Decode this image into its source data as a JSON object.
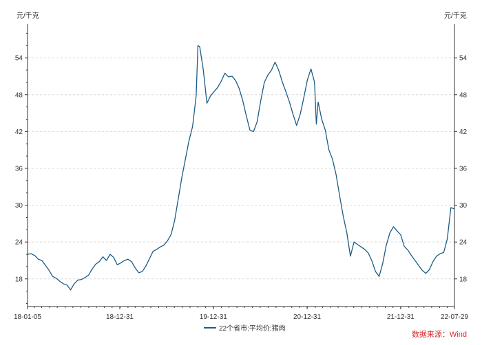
{
  "chart_data": {
    "type": "line",
    "unit_left": "元/千克",
    "unit_right": "元/千克",
    "ylim": [
      13.5,
      59.5
    ],
    "yticks": [
      18,
      24,
      30,
      36,
      42,
      48,
      54
    ],
    "xlim": [
      "2018-01-05",
      "2022-07-29"
    ],
    "xticks": [
      {
        "label": "18-01-05",
        "date": "2018-01-05"
      },
      {
        "label": "18-12-31",
        "date": "2018-12-31"
      },
      {
        "label": "19-12-31",
        "date": "2019-12-31"
      },
      {
        "label": "20-12-31",
        "date": "2020-12-31"
      },
      {
        "label": "21-12-31",
        "date": "2021-12-31"
      },
      {
        "label": "22-07-29",
        "date": "2022-07-29"
      }
    ],
    "grid": true,
    "legend_position": "bottom",
    "series": [
      {
        "name": "22个省市:平均价:猪肉",
        "color": "#1a5c85",
        "points": [
          [
            "2018-01-05",
            22.0
          ],
          [
            "2018-01-19",
            22.1
          ],
          [
            "2018-02-02",
            21.8
          ],
          [
            "2018-02-16",
            21.2
          ],
          [
            "2018-03-02",
            21.0
          ],
          [
            "2018-03-16",
            20.2
          ],
          [
            "2018-03-30",
            19.4
          ],
          [
            "2018-04-13",
            18.4
          ],
          [
            "2018-04-27",
            18.1
          ],
          [
            "2018-05-11",
            17.6
          ],
          [
            "2018-05-25",
            17.2
          ],
          [
            "2018-06-08",
            17.0
          ],
          [
            "2018-06-22",
            16.2
          ],
          [
            "2018-07-06",
            17.2
          ],
          [
            "2018-07-20",
            17.8
          ],
          [
            "2018-08-03",
            17.9
          ],
          [
            "2018-08-17",
            18.2
          ],
          [
            "2018-08-31",
            18.6
          ],
          [
            "2018-09-14",
            19.6
          ],
          [
            "2018-09-28",
            20.4
          ],
          [
            "2018-10-12",
            20.8
          ],
          [
            "2018-10-26",
            21.6
          ],
          [
            "2018-11-09",
            21.0
          ],
          [
            "2018-11-23",
            22.0
          ],
          [
            "2018-12-07",
            21.5
          ],
          [
            "2018-12-21",
            20.3
          ],
          [
            "2019-01-04",
            20.6
          ],
          [
            "2019-01-18",
            21.0
          ],
          [
            "2019-02-01",
            21.2
          ],
          [
            "2019-02-15",
            20.8
          ],
          [
            "2019-03-01",
            19.8
          ],
          [
            "2019-03-15",
            19.0
          ],
          [
            "2019-03-29",
            19.2
          ],
          [
            "2019-04-12",
            20.1
          ],
          [
            "2019-04-26",
            21.3
          ],
          [
            "2019-05-10",
            22.5
          ],
          [
            "2019-05-24",
            22.8
          ],
          [
            "2019-06-07",
            23.2
          ],
          [
            "2019-06-21",
            23.5
          ],
          [
            "2019-07-05",
            24.2
          ],
          [
            "2019-07-19",
            25.2
          ],
          [
            "2019-08-02",
            27.5
          ],
          [
            "2019-08-16",
            31.0
          ],
          [
            "2019-08-30",
            34.5
          ],
          [
            "2019-09-13",
            37.5
          ],
          [
            "2019-09-27",
            40.5
          ],
          [
            "2019-10-11",
            42.8
          ],
          [
            "2019-10-25",
            47.8
          ],
          [
            "2019-11-01",
            56.0
          ],
          [
            "2019-11-08",
            55.8
          ],
          [
            "2019-11-22",
            52.0
          ],
          [
            "2019-12-06",
            46.6
          ],
          [
            "2019-12-20",
            47.8
          ],
          [
            "2020-01-03",
            48.5
          ],
          [
            "2020-01-17",
            49.2
          ],
          [
            "2020-01-31",
            50.2
          ],
          [
            "2020-02-14",
            51.5
          ],
          [
            "2020-02-28",
            50.9
          ],
          [
            "2020-03-13",
            51.0
          ],
          [
            "2020-03-27",
            50.3
          ],
          [
            "2020-04-10",
            49.0
          ],
          [
            "2020-04-24",
            47.0
          ],
          [
            "2020-05-08",
            44.5
          ],
          [
            "2020-05-22",
            42.2
          ],
          [
            "2020-06-05",
            42.0
          ],
          [
            "2020-06-19",
            43.6
          ],
          [
            "2020-07-03",
            47.0
          ],
          [
            "2020-07-17",
            50.0
          ],
          [
            "2020-07-31",
            51.2
          ],
          [
            "2020-08-14",
            52.0
          ],
          [
            "2020-08-28",
            53.3
          ],
          [
            "2020-09-11",
            52.0
          ],
          [
            "2020-09-25",
            50.1
          ],
          [
            "2020-10-09",
            48.5
          ],
          [
            "2020-10-23",
            46.8
          ],
          [
            "2020-11-06",
            44.8
          ],
          [
            "2020-11-20",
            43.0
          ],
          [
            "2020-12-04",
            44.8
          ],
          [
            "2020-12-18",
            47.5
          ],
          [
            "2021-01-01",
            50.4
          ],
          [
            "2021-01-15",
            52.2
          ],
          [
            "2021-01-29",
            50.0
          ],
          [
            "2021-02-05",
            43.2
          ],
          [
            "2021-02-12",
            46.8
          ],
          [
            "2021-02-26",
            44.0
          ],
          [
            "2021-03-12",
            42.2
          ],
          [
            "2021-03-26",
            39.0
          ],
          [
            "2021-04-09",
            37.5
          ],
          [
            "2021-04-23",
            35.0
          ],
          [
            "2021-05-07",
            31.5
          ],
          [
            "2021-05-21",
            28.2
          ],
          [
            "2021-06-04",
            25.5
          ],
          [
            "2021-06-18",
            21.7
          ],
          [
            "2021-07-02",
            24.0
          ],
          [
            "2021-07-16",
            23.6
          ],
          [
            "2021-07-30",
            23.2
          ],
          [
            "2021-08-13",
            22.8
          ],
          [
            "2021-08-27",
            22.2
          ],
          [
            "2021-09-10",
            20.9
          ],
          [
            "2021-09-24",
            19.2
          ],
          [
            "2021-10-08",
            18.4
          ],
          [
            "2021-10-22",
            20.5
          ],
          [
            "2021-11-05",
            23.5
          ],
          [
            "2021-11-19",
            25.5
          ],
          [
            "2021-12-03",
            26.5
          ],
          [
            "2021-12-17",
            25.8
          ],
          [
            "2021-12-31",
            25.2
          ],
          [
            "2022-01-14",
            23.3
          ],
          [
            "2022-01-28",
            22.7
          ],
          [
            "2022-02-11",
            21.8
          ],
          [
            "2022-02-25",
            21.0
          ],
          [
            "2022-03-11",
            20.2
          ],
          [
            "2022-03-25",
            19.4
          ],
          [
            "2022-04-08",
            18.9
          ],
          [
            "2022-04-22",
            19.5
          ],
          [
            "2022-05-06",
            20.8
          ],
          [
            "2022-05-20",
            21.7
          ],
          [
            "2022-06-03",
            22.1
          ],
          [
            "2022-06-17",
            22.3
          ],
          [
            "2022-07-01",
            24.5
          ],
          [
            "2022-07-15",
            29.6
          ],
          [
            "2022-07-29",
            29.4
          ]
        ]
      }
    ],
    "source_note": "数据来源：Wind"
  }
}
